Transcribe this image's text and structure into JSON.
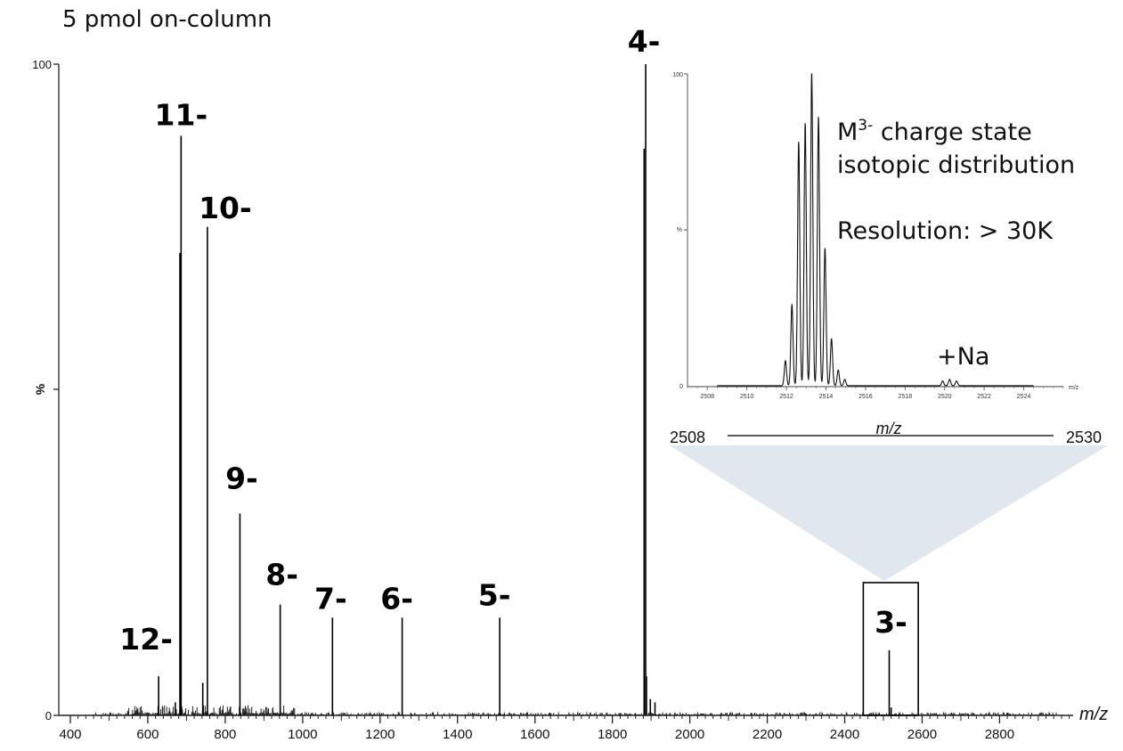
{
  "chart_data": [
    {
      "type": "line",
      "subtitle": "5 pmol on-column",
      "xlabel": "m/z",
      "ylabel": "%",
      "xlim": [
        400,
        2990
      ],
      "ylim": [
        0,
        100
      ],
      "x_ticks": [
        400,
        600,
        800,
        1000,
        1200,
        1400,
        1600,
        1800,
        2000,
        2200,
        2400,
        2600,
        2800
      ],
      "y_tick_labels": [
        "100",
        "0"
      ],
      "peaks": [
        {
          "label": "12-",
          "x": 628,
          "y": 6
        },
        {
          "label": "11-",
          "x": 686,
          "y": 89
        },
        {
          "label": "10-",
          "x": 754,
          "y": 75
        },
        {
          "label": "9-",
          "x": 838,
          "y": 31
        },
        {
          "label": "8-",
          "x": 942,
          "y": 17
        },
        {
          "label": "7-",
          "x": 1077,
          "y": 15
        },
        {
          "label": "6-",
          "x": 1257,
          "y": 15
        },
        {
          "label": "5-",
          "x": 1509,
          "y": 15
        },
        {
          "label": "4-",
          "x": 1886,
          "y": 100
        },
        {
          "label": "3-",
          "x": 2515,
          "y": 10
        }
      ],
      "minor_peaks": [
        {
          "x": 1882,
          "y": 87
        },
        {
          "x": 683,
          "y": 71
        },
        {
          "x": 742,
          "y": 5
        },
        {
          "x": 671,
          "y": 2
        },
        {
          "x": 1888,
          "y": 6
        },
        {
          "x": 1910,
          "y": 2
        },
        {
          "x": 1898,
          "y": 2.5
        },
        {
          "x": 2520,
          "y": 1.2
        }
      ],
      "highlight_box": {
        "x": [
          2448,
          2590
        ],
        "label": "3-"
      }
    },
    {
      "type": "line",
      "name": "inset",
      "xlabel": "m/z",
      "ylabel": "%",
      "xlim": [
        2507,
        2526
      ],
      "ylim": [
        0,
        100
      ],
      "x_ticks": [
        2508,
        2510,
        2512,
        2514,
        2516,
        2518,
        2520,
        2522,
        2524
      ],
      "y_tick_labels": [
        "100",
        "0"
      ],
      "peaks": [
        {
          "x": 2511.95,
          "y": 8
        },
        {
          "x": 2512.28,
          "y": 26
        },
        {
          "x": 2512.62,
          "y": 78
        },
        {
          "x": 2512.95,
          "y": 84
        },
        {
          "x": 2513.28,
          "y": 100
        },
        {
          "x": 2513.62,
          "y": 86
        },
        {
          "x": 2513.95,
          "y": 44
        },
        {
          "x": 2514.28,
          "y": 15
        },
        {
          "x": 2514.62,
          "y": 5
        },
        {
          "x": 2514.95,
          "y": 2
        },
        {
          "x": 2519.9,
          "y": 1.5
        },
        {
          "x": 2520.25,
          "y": 2
        },
        {
          "x": 2520.6,
          "y": 1.5
        }
      ],
      "annotations": [
        "+Na"
      ],
      "notes": {
        "line1_base": "M",
        "line1_sup": "3-",
        "line1_rest": " charge state",
        "line2": "isotopic distribution",
        "line3": "Resolution: > 30K"
      },
      "range": {
        "min_label": "2508",
        "max_label": "2530",
        "axis_label": "m/z"
      }
    }
  ]
}
